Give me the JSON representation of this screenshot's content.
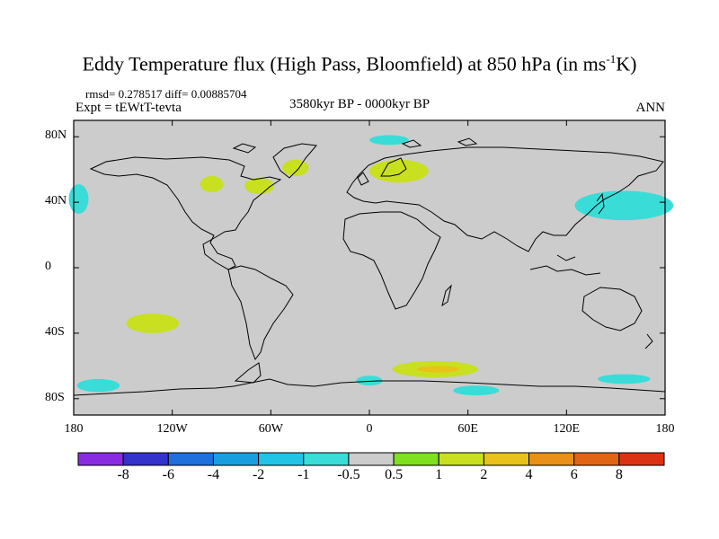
{
  "title": {
    "main": "Eddy Temperature flux (High Pass, Bloomfield) at 850 hPa (in ms",
    "sup": "-1",
    "tail": "K)"
  },
  "stats": "rmsd= 0.278517 diff= 0.00885704",
  "expt": "Expt = tEWtT-tevta",
  "period": "3580kyr BP - 0000kyr BP",
  "season": "ANN",
  "y_ticks": [
    {
      "label": "80N",
      "lat": 80
    },
    {
      "label": "40N",
      "lat": 40
    },
    {
      "label": "0",
      "lat": 0
    },
    {
      "label": "40S",
      "lat": -40
    },
    {
      "label": "80S",
      "lat": -80
    }
  ],
  "x_ticks": [
    {
      "label": "180",
      "lon": -180
    },
    {
      "label": "120W",
      "lon": -120
    },
    {
      "label": "60W",
      "lon": -60
    },
    {
      "label": "0",
      "lon": 0
    },
    {
      "label": "60E",
      "lon": 60
    },
    {
      "label": "120E",
      "lon": 120
    },
    {
      "label": "180",
      "lon": 180
    }
  ],
  "colorbar": {
    "colors": [
      "#8a2be2",
      "#3333cc",
      "#1f6fdc",
      "#199ee0",
      "#22c4e6",
      "#3adcd8",
      "#cccccc",
      "#7ee01e",
      "#c8e020",
      "#e8c21a",
      "#e89018",
      "#e06414",
      "#dc3214"
    ],
    "labels": [
      "-8",
      "-6",
      "-4",
      "-2",
      "-1",
      "-0.5",
      "0.5",
      "1",
      "2",
      "4",
      "6",
      "8"
    ]
  },
  "chart_data": {
    "type": "heatmap",
    "title": "Eddy Temperature flux (High Pass, Bloomfield) at 850 hPa (in ms-1K)",
    "subtitle": "3580kyr BP - 0000kyr BP",
    "variable_units": "ms-1K",
    "xlim": [
      -180,
      180
    ],
    "ylim": [
      -90,
      90
    ],
    "levels": [
      -8,
      -6,
      -4,
      -2,
      -1,
      -0.5,
      0.5,
      1,
      2,
      4,
      6,
      8
    ],
    "background_range": "-0.5 to 0.5",
    "regions": [
      {
        "name": "north-pacific-west-positive",
        "lon": 155,
        "lat": 38,
        "dlon": 30,
        "dlat": 9,
        "value": -1
      },
      {
        "name": "north-pacific-east-edge",
        "lon": -177,
        "lat": 42,
        "dlon": 6,
        "dlat": 9,
        "value": -1
      },
      {
        "name": "arctic-barents",
        "lon": 12,
        "lat": 78,
        "dlon": 12,
        "dlat": 3,
        "value": -1
      },
      {
        "name": "north-atlantic-greenland",
        "lon": -45,
        "lat": 61,
        "dlon": 8,
        "dlat": 5,
        "value": 1
      },
      {
        "name": "north-america-east",
        "lon": -67,
        "lat": 50,
        "dlon": 9,
        "dlat": 5,
        "value": 1
      },
      {
        "name": "north-america-central",
        "lon": -96,
        "lat": 51,
        "dlon": 7,
        "dlat": 5,
        "value": 1
      },
      {
        "name": "europe-north",
        "lon": 18,
        "lat": 59,
        "dlon": 18,
        "dlat": 7,
        "value": 1
      },
      {
        "name": "south-pacific",
        "lon": -132,
        "lat": -34,
        "dlon": 16,
        "dlat": 6,
        "value": 1
      },
      {
        "name": "southern-ocean-indian",
        "lon": 40,
        "lat": -62,
        "dlon": 26,
        "dlat": 5,
        "value": 1
      },
      {
        "name": "southern-ocean-indian-core",
        "lon": 42,
        "lat": -62,
        "dlon": 13,
        "dlat": 2,
        "value": 2
      },
      {
        "name": "southern-ocean-atlantic",
        "lon": 0,
        "lat": -69,
        "dlon": 8,
        "dlat": 3,
        "value": -1
      },
      {
        "name": "antarctica-pacific-coast",
        "lon": -165,
        "lat": -72,
        "dlon": 13,
        "dlat": 4,
        "value": -1
      },
      {
        "name": "antarctica-ross",
        "lon": 155,
        "lat": -68,
        "dlon": 16,
        "dlat": 3,
        "value": -1
      },
      {
        "name": "antarctica-indian-coast",
        "lon": 65,
        "lat": -75,
        "dlon": 14,
        "dlat": 3,
        "value": -1
      }
    ]
  }
}
